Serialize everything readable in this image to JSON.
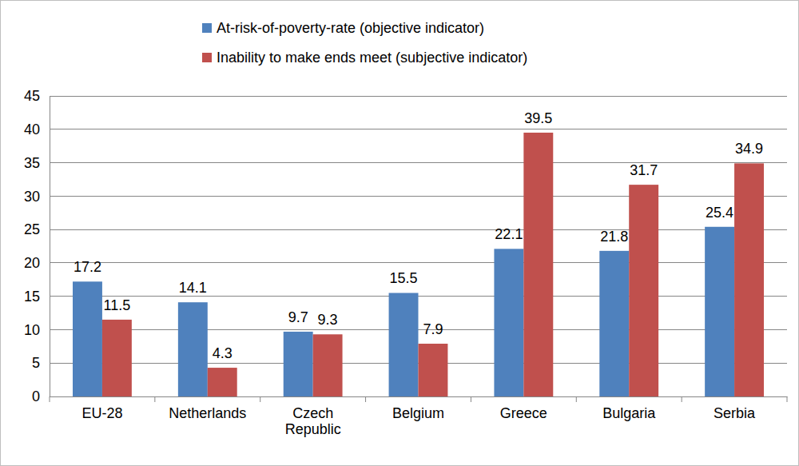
{
  "chart_data": {
    "type": "bar",
    "categories": [
      "EU-28",
      "Netherlands",
      "Czech Republic",
      "Belgium",
      "Greece",
      "Bulgaria",
      "Serbia"
    ],
    "series": [
      {
        "name": "At-risk-of-poverty-rate (objective indicator)",
        "color": "#4f81bd",
        "values": [
          17.2,
          14.1,
          9.7,
          15.5,
          22.1,
          21.8,
          25.4
        ]
      },
      {
        "name": "Inability to make ends meet (subjective indicator)",
        "color": "#c0504d",
        "values": [
          11.5,
          4.3,
          9.3,
          7.9,
          39.5,
          31.7,
          34.9
        ]
      }
    ],
    "ylim": [
      0,
      45
    ],
    "yticks": [
      0,
      5,
      10,
      15,
      20,
      25,
      30,
      35,
      40,
      45
    ],
    "grid": true,
    "legend": "top",
    "data_labels": true
  }
}
